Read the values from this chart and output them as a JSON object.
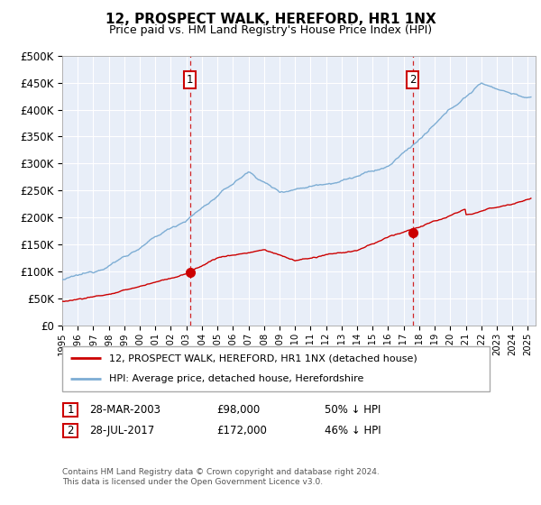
{
  "title": "12, PROSPECT WALK, HEREFORD, HR1 1NX",
  "subtitle": "Price paid vs. HM Land Registry's House Price Index (HPI)",
  "legend_line1": "12, PROSPECT WALK, HEREFORD, HR1 1NX (detached house)",
  "legend_line2": "HPI: Average price, detached house, Herefordshire",
  "footnote1": "Contains HM Land Registry data © Crown copyright and database right 2024.",
  "footnote2": "This data is licensed under the Open Government Licence v3.0.",
  "sale1_date": "28-MAR-2003",
  "sale1_price": "£98,000",
  "sale1_hpi": "50% ↓ HPI",
  "sale2_date": "28-JUL-2017",
  "sale2_price": "£172,000",
  "sale2_hpi": "46% ↓ HPI",
  "sale1_x": 2003.23,
  "sale1_y": 98000,
  "sale2_x": 2017.57,
  "sale2_y": 172000,
  "hpi_color": "#7dadd4",
  "sale_color": "#cc0000",
  "bg_color": "#e8eef8",
  "grid_color": "#ffffff",
  "ylim_min": 0,
  "ylim_max": 500000,
  "xlim_min": 1995.0,
  "xlim_max": 2025.5,
  "vline1_x": 2003.23,
  "vline2_x": 2017.57,
  "yticks": [
    0,
    50000,
    100000,
    150000,
    200000,
    250000,
    300000,
    350000,
    400000,
    450000,
    500000
  ]
}
